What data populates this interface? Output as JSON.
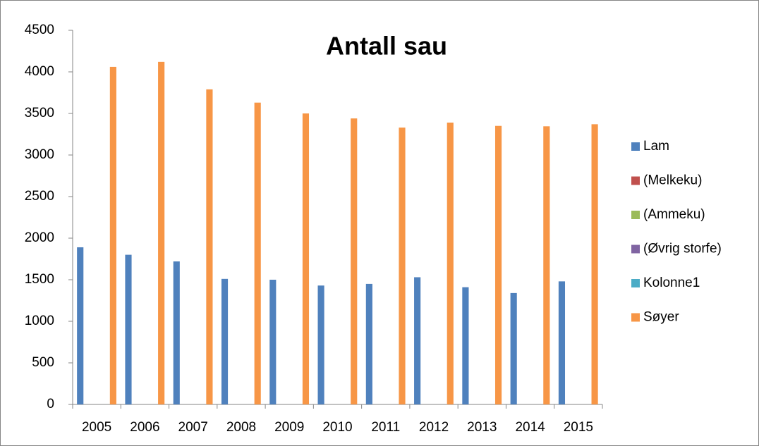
{
  "chart_data": {
    "type": "bar",
    "title": "Antall sau",
    "categories": [
      "2005",
      "2006",
      "2007",
      "2008",
      "2009",
      "2010",
      "2011",
      "2012",
      "2013",
      "2014",
      "2015"
    ],
    "series": [
      {
        "name": "Lam",
        "color": "#4f81bd",
        "values": [
          1890,
          1800,
          1720,
          1510,
          1500,
          1430,
          1450,
          1530,
          1410,
          1340,
          1480
        ]
      },
      {
        "name": "(Melkeku)",
        "color": "#c0504d",
        "values": [
          null,
          null,
          null,
          null,
          null,
          null,
          null,
          null,
          null,
          null,
          null
        ]
      },
      {
        "name": "(Ammeku)",
        "color": "#9bbb59",
        "values": [
          null,
          null,
          null,
          null,
          null,
          null,
          null,
          null,
          null,
          null,
          null
        ]
      },
      {
        "name": "(Øvrig storfe)",
        "color": "#8064a2",
        "values": [
          null,
          null,
          null,
          null,
          null,
          null,
          null,
          null,
          null,
          null,
          null
        ]
      },
      {
        "name": "Kolonne1",
        "color": "#4bacc6",
        "values": [
          null,
          null,
          null,
          null,
          null,
          null,
          null,
          null,
          null,
          null,
          null
        ]
      },
      {
        "name": "Søyer",
        "color": "#f79646",
        "values": [
          4060,
          4120,
          3790,
          3630,
          3500,
          3440,
          3330,
          3390,
          3350,
          3345,
          3370
        ]
      }
    ],
    "ylim": [
      0,
      4500
    ],
    "yticks": [
      0,
      500,
      1000,
      1500,
      2000,
      2500,
      3000,
      3500,
      4000,
      4500
    ],
    "grid": false,
    "legend": "right"
  }
}
